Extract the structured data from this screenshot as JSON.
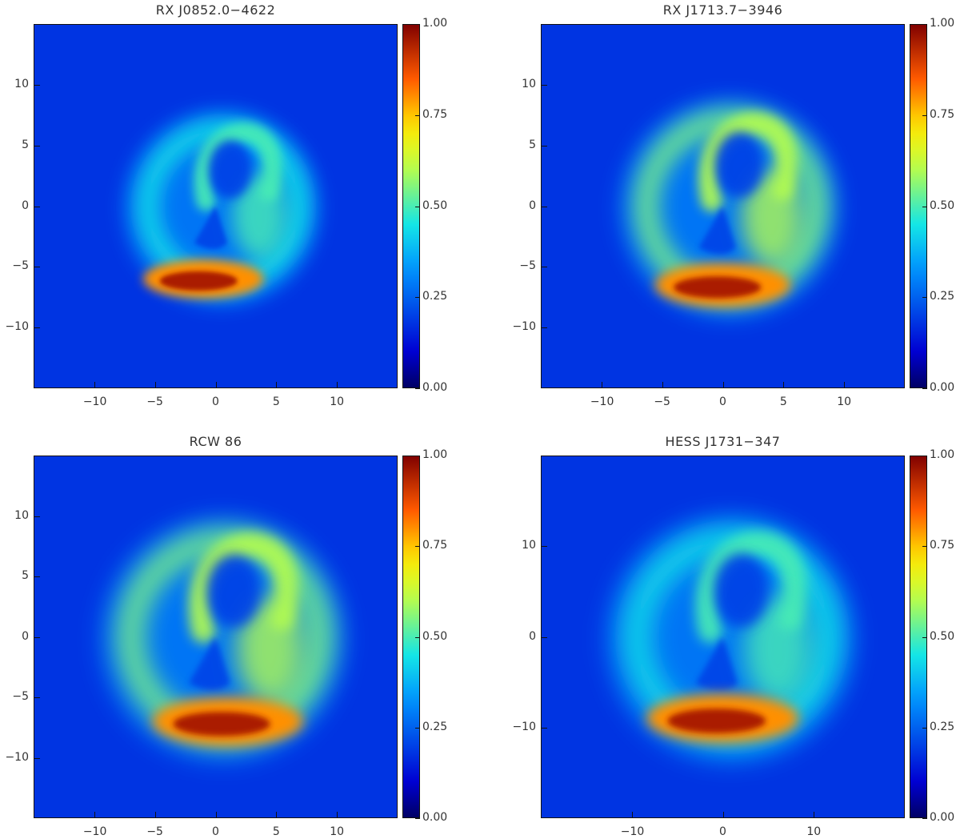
{
  "chart_data": [
    {
      "type": "heatmap",
      "title": "RX J0852.0−4622",
      "xlim": [
        -15,
        15
      ],
      "ylim": [
        -15,
        15
      ],
      "xticks": [
        -10,
        -5,
        0,
        5,
        10
      ],
      "yticks": [
        -10,
        -5,
        0,
        5,
        10
      ],
      "colorbar": {
        "min": 0.0,
        "max": 1.0,
        "ticks": [
          "0.00",
          "0.25",
          "0.50",
          "0.75",
          "1.00"
        ]
      },
      "features": {
        "shell_radius": 8.0,
        "peak_center": [
          -1,
          -6
        ],
        "peak_value": 1.0,
        "shell_level": 0.45
      }
    },
    {
      "type": "heatmap",
      "title": "RX J1713.7−3946",
      "xlim": [
        -15,
        15
      ],
      "ylim": [
        -15,
        15
      ],
      "xticks": [
        -10,
        -5,
        0,
        5,
        10
      ],
      "yticks": [
        -10,
        -5,
        0,
        5,
        10
      ],
      "colorbar": {
        "min": 0.0,
        "max": 1.0,
        "ticks": [
          "0.00",
          "0.25",
          "0.50",
          "0.75",
          "1.00"
        ]
      },
      "features": {
        "shell_radius": 9.0,
        "peak_center": [
          0,
          -6.5
        ],
        "peak_value": 1.0,
        "shell_level": 0.55
      }
    },
    {
      "type": "heatmap",
      "title": "RCW 86",
      "xlim": [
        -15,
        15
      ],
      "ylim": [
        -15,
        15
      ],
      "xticks": [
        -10,
        -5,
        0,
        5,
        10
      ],
      "yticks": [
        -10,
        -5,
        0,
        5,
        10
      ],
      "colorbar": {
        "min": 0.0,
        "max": 1.0,
        "ticks": [
          "0.00",
          "0.25",
          "0.50",
          "0.75",
          "1.00"
        ]
      },
      "features": {
        "shell_radius": 10.0,
        "peak_center": [
          1,
          -7
        ],
        "peak_value": 1.0,
        "shell_level": 0.55
      }
    },
    {
      "type": "heatmap",
      "title": "HESS J1731−347",
      "xlim": [
        -20,
        20
      ],
      "ylim": [
        -20,
        20
      ],
      "xticks": [
        -10,
        0,
        10
      ],
      "yticks": [
        -10,
        0,
        10
      ],
      "colorbar": {
        "min": 0.0,
        "max": 1.0,
        "ticks": [
          "0.00",
          "0.25",
          "0.50",
          "0.75",
          "1.00"
        ]
      },
      "features": {
        "shell_radius": 13.5,
        "peak_center": [
          0,
          -9
        ],
        "peak_value": 1.0,
        "shell_level": 0.45
      }
    }
  ]
}
